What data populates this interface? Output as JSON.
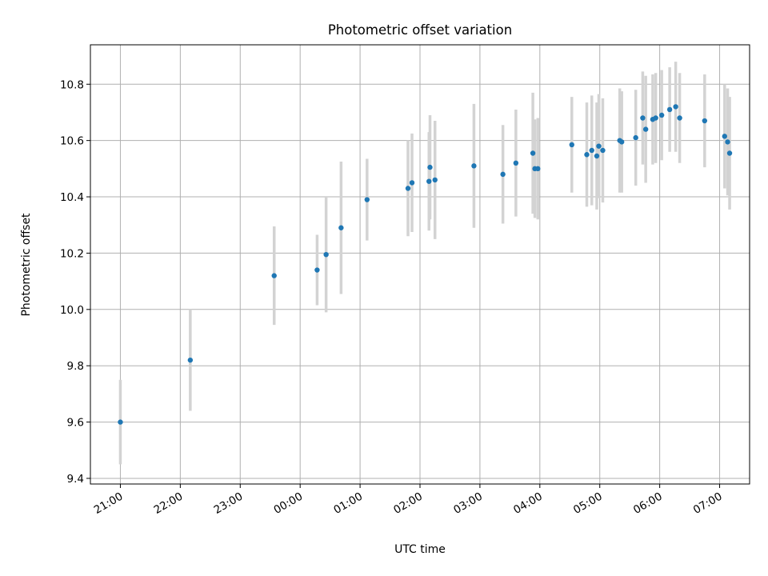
{
  "chart_data": {
    "type": "scatter",
    "title": "Photometric offset variation",
    "xlabel": "UTC time",
    "ylabel": "Photometric offset",
    "x_ticks": [
      "21:00",
      "22:00",
      "23:00",
      "00:00",
      "01:00",
      "02:00",
      "03:00",
      "04:00",
      "05:00",
      "06:00",
      "07:00"
    ],
    "y_ticks": [
      "9.4",
      "9.6",
      "9.8",
      "10.0",
      "10.2",
      "10.4",
      "10.6",
      "10.8"
    ],
    "xlim_hours_after_2100": [
      -0.5,
      10.5
    ],
    "ylim": [
      9.38,
      10.94
    ],
    "grid": true,
    "colors": {
      "points": "#1f77b4",
      "errorbars": "#d3d3d3",
      "grid": "#b0b0b0"
    },
    "series": [
      {
        "x": [
          "21:00",
          "22:10",
          "23:34",
          "00:17",
          "00:26",
          "00:41",
          "01:07",
          "01:48",
          "01:52",
          "02:09",
          "02:10",
          "02:15",
          "02:54",
          "03:23",
          "03:36",
          "03:53",
          "03:55",
          "03:58",
          "04:32",
          "04:47",
          "04:52",
          "04:57",
          "04:59",
          "05:03",
          "05:20",
          "05:22",
          "05:36",
          "05:43",
          "05:46",
          "05:53",
          "05:56",
          "06:02",
          "06:10",
          "06:16",
          "06:20",
          "06:45",
          "07:05",
          "07:08",
          "07:10"
        ],
        "y": [
          9.6,
          9.82,
          10.12,
          10.14,
          10.195,
          10.29,
          10.39,
          10.43,
          10.45,
          10.455,
          10.505,
          10.46,
          10.51,
          10.48,
          10.52,
          10.555,
          10.5,
          10.5,
          10.585,
          10.55,
          10.565,
          10.545,
          10.58,
          10.565,
          10.6,
          10.595,
          10.61,
          10.68,
          10.64,
          10.675,
          10.68,
          10.69,
          10.71,
          10.72,
          10.68,
          10.67,
          10.615,
          10.595,
          10.555
        ],
        "yerr": [
          0.15,
          0.18,
          0.175,
          0.125,
          0.205,
          0.235,
          0.145,
          0.17,
          0.175,
          0.175,
          0.185,
          0.21,
          0.22,
          0.175,
          0.19,
          0.215,
          0.175,
          0.18,
          0.17,
          0.185,
          0.195,
          0.19,
          0.185,
          0.185,
          0.185,
          0.18,
          0.17,
          0.165,
          0.19,
          0.16,
          0.16,
          0.16,
          0.15,
          0.16,
          0.16,
          0.165,
          0.185,
          0.19,
          0.2
        ]
      }
    ]
  }
}
